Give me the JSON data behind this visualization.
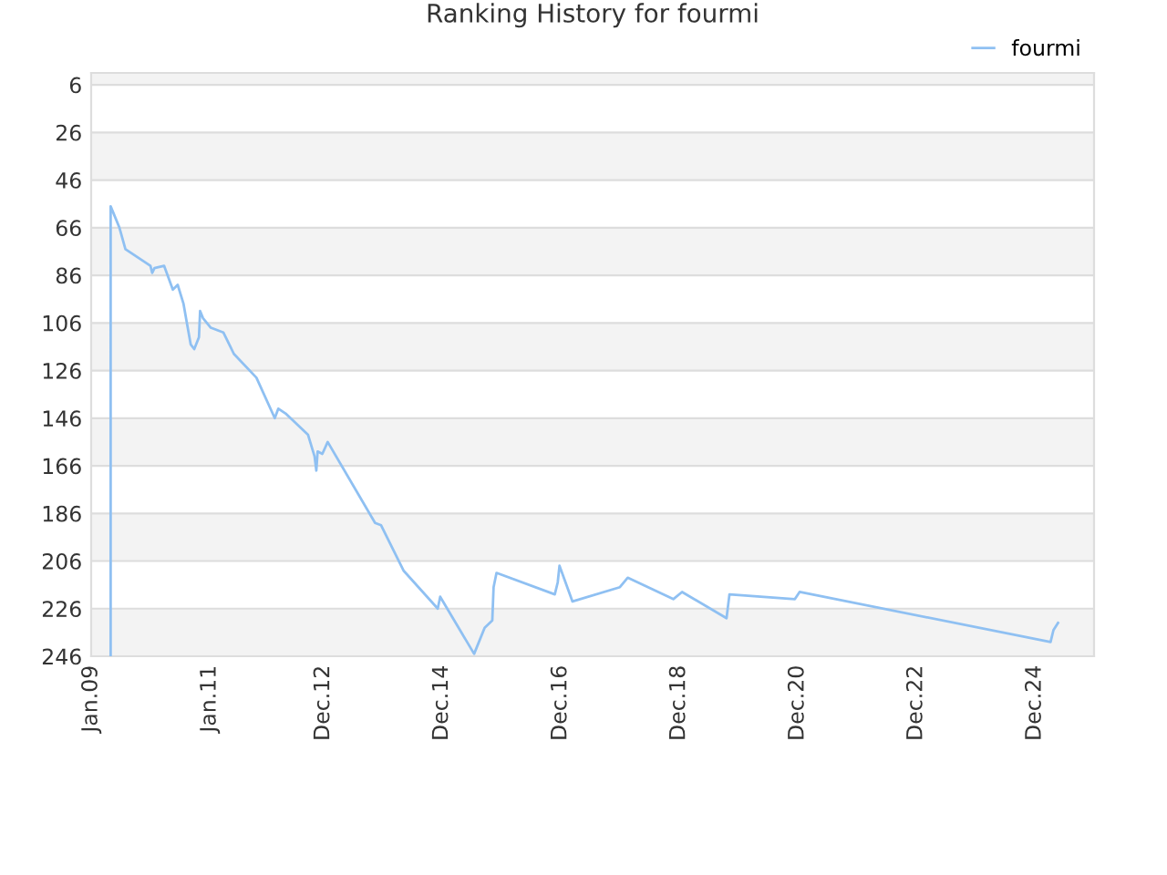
{
  "chart_data": {
    "type": "line",
    "title": "Ranking History for fourmi",
    "x": [
      "2009-05-01",
      "2009-05-01",
      "2009-05-19",
      "2009-06-24",
      "2009-07-31",
      "2010-01-01",
      "2010-01-12",
      "2010-01-26",
      "2010-03-26",
      "2010-05-19",
      "2010-06-18",
      "2010-07-24",
      "2010-08-11",
      "2010-09-06",
      "2010-09-28",
      "2010-10-27",
      "2010-11-03",
      "2010-11-21",
      "2011-01-08",
      "2011-03-26",
      "2011-05-30",
      "2011-10-16",
      "2012-02-06",
      "2012-02-28",
      "2012-04-12",
      "2012-08-29",
      "2012-10-08",
      "2012-10-19",
      "2012-10-27",
      "2012-11-25",
      "2012-12-28",
      "2013-10-16",
      "2013-11-22",
      "2014-04-09",
      "2014-11-06",
      "2014-11-21",
      "2015-06-18",
      "2015-08-22",
      "2015-10-08",
      "2015-10-16",
      "2015-11-03",
      "2016-10-27",
      "2016-11-14",
      "2016-11-25",
      "2017-02-13",
      "2017-12-02",
      "2018-01-19",
      "2018-10-27",
      "2018-12-20",
      "2019-09-20",
      "2019-10-08",
      "2020-11-14",
      "2020-12-13",
      "2025-03-08",
      "2025-03-26",
      "2025-04-23"
    ],
    "series": [
      {
        "name": "fourmi",
        "color": "#8fc0f2",
        "values": [
          246,
          57,
          60,
          66,
          75,
          82,
          85,
          83,
          82,
          92,
          90,
          98,
          105,
          115,
          117,
          112,
          101,
          104,
          108,
          110,
          119,
          129,
          146,
          142,
          144,
          153,
          162,
          168,
          160,
          161,
          156,
          190,
          191,
          210,
          226,
          221,
          245,
          234,
          231,
          217,
          211,
          220,
          215,
          208,
          223,
          217,
          213,
          222,
          219,
          230,
          220,
          222,
          219,
          240,
          235,
          232
        ]
      }
    ],
    "xlim": [
      "2009-01-01",
      "2025-12-01"
    ],
    "xticks": [
      {
        "value": "2009-01-01",
        "label": "Jan.09"
      },
      {
        "value": "2011-01-01",
        "label": "Jan.11"
      },
      {
        "value": "2012-12-01",
        "label": "Dec.12"
      },
      {
        "value": "2014-12-01",
        "label": "Dec.14"
      },
      {
        "value": "2016-12-01",
        "label": "Dec.16"
      },
      {
        "value": "2018-12-01",
        "label": "Dec.18"
      },
      {
        "value": "2020-12-01",
        "label": "Dec.20"
      },
      {
        "value": "2022-12-01",
        "label": "Dec.22"
      },
      {
        "value": "2024-12-01",
        "label": "Dec.24"
      }
    ],
    "ylim": [
      246,
      1
    ],
    "yticks": [
      6,
      26,
      46,
      66,
      86,
      106,
      126,
      146,
      166,
      186,
      206,
      226,
      246
    ],
    "grid": "y",
    "legend": "top right",
    "marker": "none",
    "line_style": "solid"
  }
}
